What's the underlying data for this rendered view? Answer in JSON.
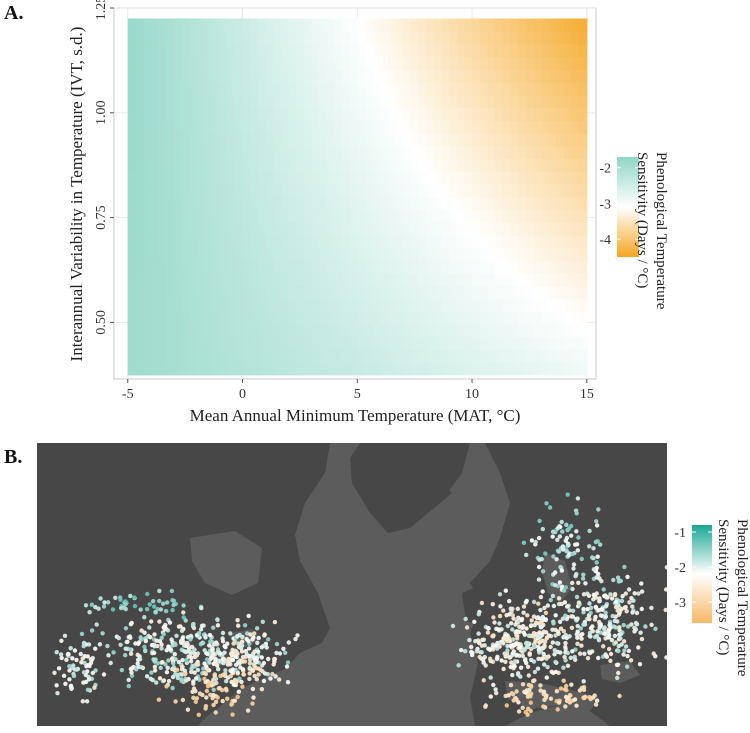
{
  "panels": {
    "a_label": "A.",
    "b_label": "B."
  },
  "chart_data": [
    {
      "type": "heatmap",
      "xlabel": "Mean Annual Minimum Temperature (MAT, °C)",
      "ylabel": "Interannual Variability in Temperature (IVT, s.d.)",
      "xlim": [
        -5.6,
        15.4
      ],
      "ylim": [
        0.365,
        1.25
      ],
      "x_range": [
        -5,
        15
      ],
      "y_range": [
        0.375,
        1.225
      ],
      "x_ticks": [
        -5,
        0,
        5,
        10,
        15
      ],
      "x_tick_labels": [
        "-5",
        "0",
        "5",
        "10",
        "15"
      ],
      "y_ticks": [
        0.5,
        0.75,
        1.0,
        1.25
      ],
      "y_tick_labels": [
        "0.50",
        "0.75",
        "1.00",
        "1.25"
      ],
      "grid": true,
      "surface": {
        "description_corners": {
          "x_min_y_min": -1.9,
          "x_max_y_min": -2.9,
          "x_min_y_max": -1.8,
          "x_max_y_max": -4.4
        },
        "value_range": [
          -4.5,
          -1.7
        ]
      },
      "legend": {
        "title": "Phenological Temperature Sensitivity (Days / °C)",
        "ticks": [
          -2,
          -3,
          -4
        ],
        "tick_labels": [
          "-2",
          "-3",
          "-4"
        ],
        "range": [
          -4.5,
          -1.7
        ],
        "placement": "right",
        "colors": {
          "high": "#8fd6c6",
          "mid": "#ffffff",
          "low": "#f5a623"
        }
      }
    },
    {
      "type": "scatter",
      "title": "",
      "description": "map",
      "legend": {
        "title": "Phenological Temperature Sensitivity (Days / °C)",
        "ticks": [
          -1,
          -2,
          -3
        ],
        "tick_labels": [
          "-1",
          "-2",
          "-3"
        ],
        "range": [
          -3.6,
          -0.8
        ],
        "placement": "right",
        "colors": {
          "high": "#1aa793",
          "mid": "#ffffff",
          "low": "#f7b867"
        }
      }
    }
  ],
  "colors": {
    "map_background": "#5a5a5a",
    "land": "#454545",
    "teal": "#8fd6c6",
    "orange": "#f5a623"
  }
}
